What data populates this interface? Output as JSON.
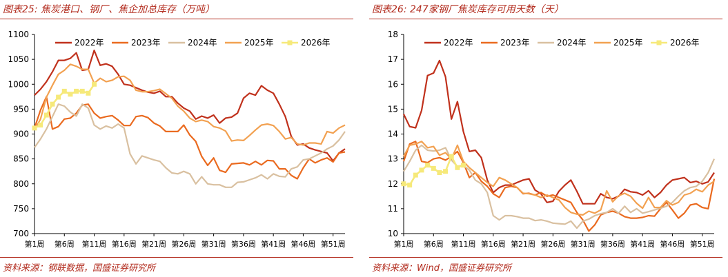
{
  "left": {
    "title": "图表25:  焦炭港口、钢厂、焦企加总库存（万吨）",
    "source": "资料来源：钢联数据，国盛证券研究所"
  },
  "right": {
    "title": "图表26:  247家钢厂焦炭库存可用天数（天）",
    "source": "资料来源：Wind，国盛证券研究所"
  },
  "colors": {
    "2022年": "#c0311c",
    "2023年": "#ea6a1f",
    "2024年": "#d9c0a0",
    "2025年": "#f2a151",
    "2026年": "#f6e97a"
  },
  "chart_data": [
    {
      "type": "line",
      "title": "焦炭港口、钢厂、焦企加总库存（万吨）",
      "unit": "万吨",
      "ylim": [
        700,
        1100
      ],
      "yticks": [
        700,
        750,
        800,
        850,
        900,
        950,
        1000,
        1050,
        1100
      ],
      "xlim": [
        1,
        53
      ],
      "xticks": [
        1,
        6,
        11,
        16,
        21,
        26,
        31,
        36,
        41,
        46,
        51
      ],
      "xtick_labels": [
        "第1周",
        "第6周",
        "第11周",
        "第16周",
        "第21周",
        "第26周",
        "第31周",
        "第36周",
        "第41周",
        "第46周",
        "第51周"
      ],
      "legend": "top",
      "series": [
        {
          "name": "2022年",
          "values": [
            978,
            990,
            1005,
            1025,
            1048,
            1048,
            1052,
            1063,
            1028,
            1030,
            1068,
            1038,
            1041,
            1036,
            1020,
            1000,
            998,
            993,
            988,
            984,
            982,
            986,
            975,
            975,
            962,
            952,
            946,
            930,
            936,
            932,
            938,
            922,
            932,
            934,
            942,
            972,
            982,
            978,
            997,
            988,
            982,
            960,
            935,
            895,
            878,
            880,
            872,
            868,
            865,
            862,
            846,
            862,
            870
          ]
        },
        {
          "name": "2023年",
          "values": [
            912,
            948,
            975,
            910,
            915,
            930,
            932,
            942,
            958,
            960,
            942,
            932,
            935,
            937,
            928,
            917,
            917,
            935,
            937,
            933,
            922,
            916,
            905,
            905,
            905,
            918,
            898,
            885,
            855,
            837,
            852,
            827,
            823,
            840,
            841,
            842,
            838,
            845,
            838,
            847,
            846,
            830,
            830,
            817,
            810,
            832,
            850,
            842,
            848,
            852,
            844,
            862,
            864
          ]
        },
        {
          "name": "2024年",
          "values": [
            873,
            890,
            910,
            935,
            960,
            956,
            944,
            936,
            960,
            952,
            918,
            910,
            916,
            912,
            920,
            912,
            860,
            840,
            856,
            852,
            848,
            845,
            832,
            822,
            820,
            825,
            820,
            800,
            814,
            800,
            798,
            798,
            793,
            793,
            803,
            804,
            808,
            812,
            818,
            810,
            820,
            815,
            814,
            830,
            834,
            848,
            850,
            856,
            862,
            870,
            876,
            888,
            905
          ]
        },
        {
          "name": "2025年",
          "values": [
            908,
            930,
            974,
            998,
            1020,
            1028,
            1040,
            1036,
            1030,
            1030,
            1002,
            1012,
            1005,
            1008,
            1015,
            1016,
            1008,
            988,
            985,
            985,
            987,
            990,
            981,
            972,
            956,
            946,
            932,
            925,
            928,
            925,
            915,
            912,
            906,
            886,
            888,
            887,
            897,
            908,
            918,
            920,
            917,
            905,
            890,
            893,
            880,
            878,
            882,
            882,
            880,
            905,
            902,
            912,
            918
          ]
        },
        {
          "name": "2026年",
          "values": [
            912,
            918,
            938,
            960,
            974,
            986,
            980,
            986,
            986,
            982,
            1000
          ]
        }
      ]
    },
    {
      "type": "line",
      "title": "247家钢厂焦炭库存可用天数（天）",
      "unit": "天",
      "ylim": [
        10,
        18
      ],
      "yticks": [
        10,
        11,
        12,
        13,
        14,
        15,
        16,
        17,
        18
      ],
      "xlim": [
        1,
        53
      ],
      "xticks": [
        1,
        6,
        11,
        16,
        21,
        26,
        31,
        36,
        41,
        46,
        51
      ],
      "xtick_labels": [
        "第1周",
        "第6周",
        "第11周",
        "第16周",
        "第21周",
        "第26周",
        "第31周",
        "第36周",
        "第41周",
        "第46周",
        "第51周"
      ],
      "legend": "top",
      "series": [
        {
          "name": "2022年",
          "values": [
            14.8,
            14.3,
            14.25,
            14.95,
            16.35,
            16.45,
            16.95,
            16.3,
            14.6,
            15.3,
            14.1,
            13.3,
            13.35,
            13.05,
            12.15,
            11.65,
            11.85,
            11.95,
            11.95,
            12.05,
            12.15,
            12.2,
            11.75,
            11.6,
            11.25,
            11.3,
            11.7,
            11.95,
            12.15,
            11.7,
            11.2,
            11.2,
            11.2,
            11.6,
            11.45,
            11.4,
            11.5,
            11.78,
            11.68,
            11.65,
            11.55,
            11.72,
            11.45,
            11.65,
            11.95,
            12.15,
            12.2,
            12.25,
            12.05,
            12.1,
            12.0,
            12.08,
            12.45
          ]
        },
        {
          "name": "2023年",
          "values": [
            12.9,
            13.6,
            13.7,
            12.9,
            12.85,
            13.0,
            13.05,
            12.95,
            13.1,
            13.3,
            12.85,
            12.25,
            12.45,
            12.1,
            11.9,
            11.6,
            11.45,
            11.85,
            11.9,
            11.85,
            11.6,
            11.62,
            11.55,
            11.65,
            11.5,
            11.55,
            11.45,
            11.35,
            11.25,
            10.85,
            10.55,
            10.1,
            10.35,
            10.75,
            10.85,
            10.9,
            10.82,
            10.68,
            10.62,
            10.62,
            10.65,
            10.72,
            10.7,
            11.0,
            11.25,
            10.95,
            10.62,
            10.82,
            11.15,
            11.2,
            11.05,
            11.0,
            12.2
          ]
        },
        {
          "name": "2024年",
          "values": [
            12.5,
            12.9,
            13.35,
            13.55,
            13.35,
            13.32,
            13.35,
            13.45,
            12.95,
            12.7,
            12.75,
            12.55,
            12.15,
            12.0,
            11.65,
            10.72,
            10.55,
            10.72,
            10.72,
            10.68,
            10.62,
            10.62,
            10.52,
            10.55,
            10.5,
            10.42,
            10.4,
            10.38,
            10.5,
            10.22,
            10.5,
            10.58,
            10.72,
            10.8,
            10.85,
            11.0,
            10.82,
            11.1,
            10.85,
            11.0,
            10.82,
            10.88,
            10.95,
            11.02,
            11.1,
            11.25,
            11.5,
            11.72,
            11.85,
            11.9,
            12.1,
            12.45,
            13.0
          ]
        },
        {
          "name": "2025年",
          "values": [
            13.1,
            13.55,
            13.6,
            13.7,
            13.45,
            13.5,
            13.15,
            13.25,
            13.0,
            13.55,
            12.9,
            12.65,
            12.45,
            12.25,
            12.05,
            11.9,
            12.25,
            12.15,
            12.0,
            11.85,
            11.62,
            11.6,
            11.55,
            11.45,
            11.55,
            11.45,
            11.35,
            11.05,
            10.85,
            10.78,
            10.75,
            10.9,
            10.82,
            10.95,
            11.72,
            11.28,
            11.52,
            11.62,
            11.5,
            11.22,
            11.02,
            11.45,
            11.05,
            11.05,
            11.32,
            11.15,
            11.25,
            11.55,
            11.62,
            11.78,
            11.68,
            11.95,
            12.1
          ]
        },
        {
          "name": "2026年",
          "values": [
            12.0,
            11.95,
            12.35,
            12.55,
            12.75,
            12.62,
            12.45,
            12.5,
            13.1,
            12.65,
            12.75
          ]
        }
      ]
    }
  ]
}
